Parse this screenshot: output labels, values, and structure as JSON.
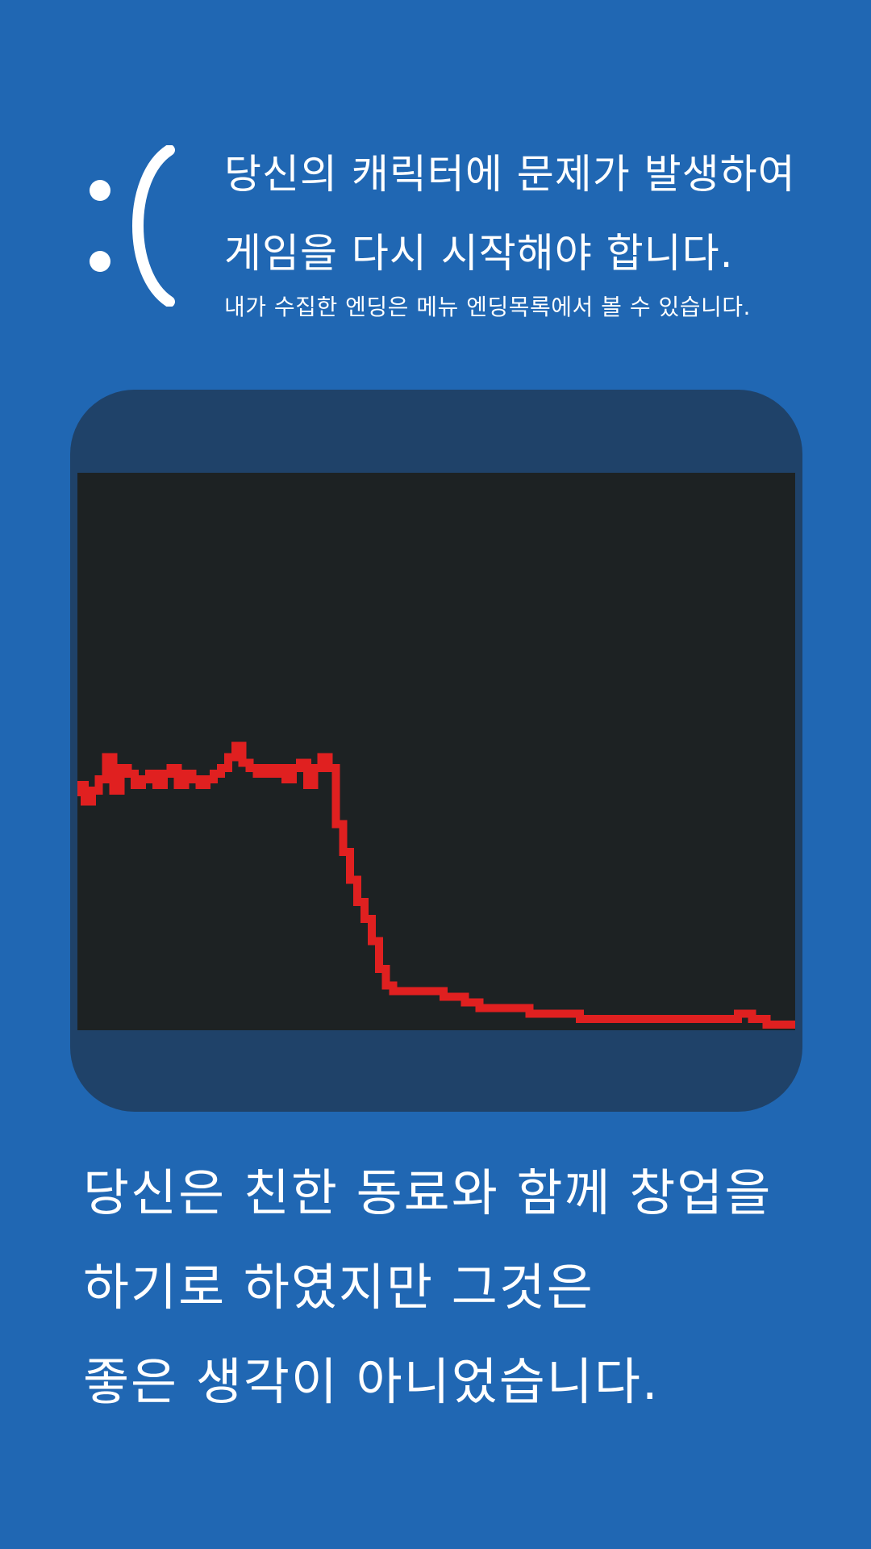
{
  "header": {
    "emoticon": ":(",
    "title_line_1": "당신의 캐릭터에 문제가 발생하여",
    "title_line_2": "게임을 다시 시작해야 합니다.",
    "subtitle": "내가 수집한 엔딩은 메뉴 엔딩목록에서 볼 수 있습니다."
  },
  "story": {
    "line_1": "당신은 친한 동료와 함께 창업을",
    "line_2": "하기로 하였지만 그것은",
    "line_3": "좋은 생각이 아니었습니다."
  },
  "colors": {
    "background": "#2067b3",
    "card": "#1f4269",
    "screen": "#1d2223",
    "line": "#e02020",
    "text": "#ffffff"
  },
  "chart_data": {
    "type": "line",
    "title": "",
    "xlabel": "",
    "ylabel": "",
    "xlim": [
      0,
      100
    ],
    "ylim": [
      0,
      100
    ],
    "grid": false,
    "series": [
      {
        "x": [
          0,
          1,
          2,
          3,
          4,
          5,
          6,
          7,
          8,
          9,
          10,
          11,
          12,
          13,
          14,
          15,
          16,
          17,
          18,
          19,
          20,
          21,
          22,
          23,
          24,
          25,
          26,
          27,
          28,
          29,
          30,
          31,
          32,
          33,
          34,
          35,
          36,
          37,
          38,
          39,
          40,
          41,
          42,
          43,
          44,
          45,
          46,
          47,
          48,
          49,
          50,
          51,
          52,
          53,
          54,
          55,
          56,
          57,
          58,
          59,
          60,
          61,
          62,
          63,
          64,
          65,
          66,
          67,
          68,
          69,
          70,
          71,
          72,
          73,
          74,
          75,
          76,
          77,
          78,
          79,
          80,
          81,
          82,
          83,
          84,
          85,
          86,
          87,
          88,
          89,
          90,
          91,
          92,
          93,
          94,
          95,
          96,
          97,
          98,
          99,
          100
        ],
        "y": [
          42,
          44,
          41,
          43,
          45,
          49,
          43,
          47,
          46,
          44,
          45,
          46,
          44,
          46,
          47,
          44,
          46,
          45,
          44,
          45,
          46,
          47,
          49,
          51,
          48,
          47,
          46,
          47,
          46,
          47,
          45,
          47,
          48,
          44,
          47,
          49,
          47,
          37,
          32,
          27,
          23,
          20,
          16,
          11,
          8,
          7,
          7,
          7,
          7,
          7,
          7,
          7,
          6,
          6,
          6,
          5,
          5,
          4,
          4,
          4,
          4,
          4,
          4,
          4,
          3,
          3,
          3,
          3,
          3,
          3,
          3,
          2,
          2,
          2,
          2,
          2,
          2,
          2,
          2,
          2,
          2,
          2,
          2,
          2,
          2,
          2,
          2,
          2,
          2,
          2,
          2,
          2,
          2,
          3,
          3,
          2,
          2,
          1,
          1,
          1,
          1
        ]
      }
    ]
  }
}
